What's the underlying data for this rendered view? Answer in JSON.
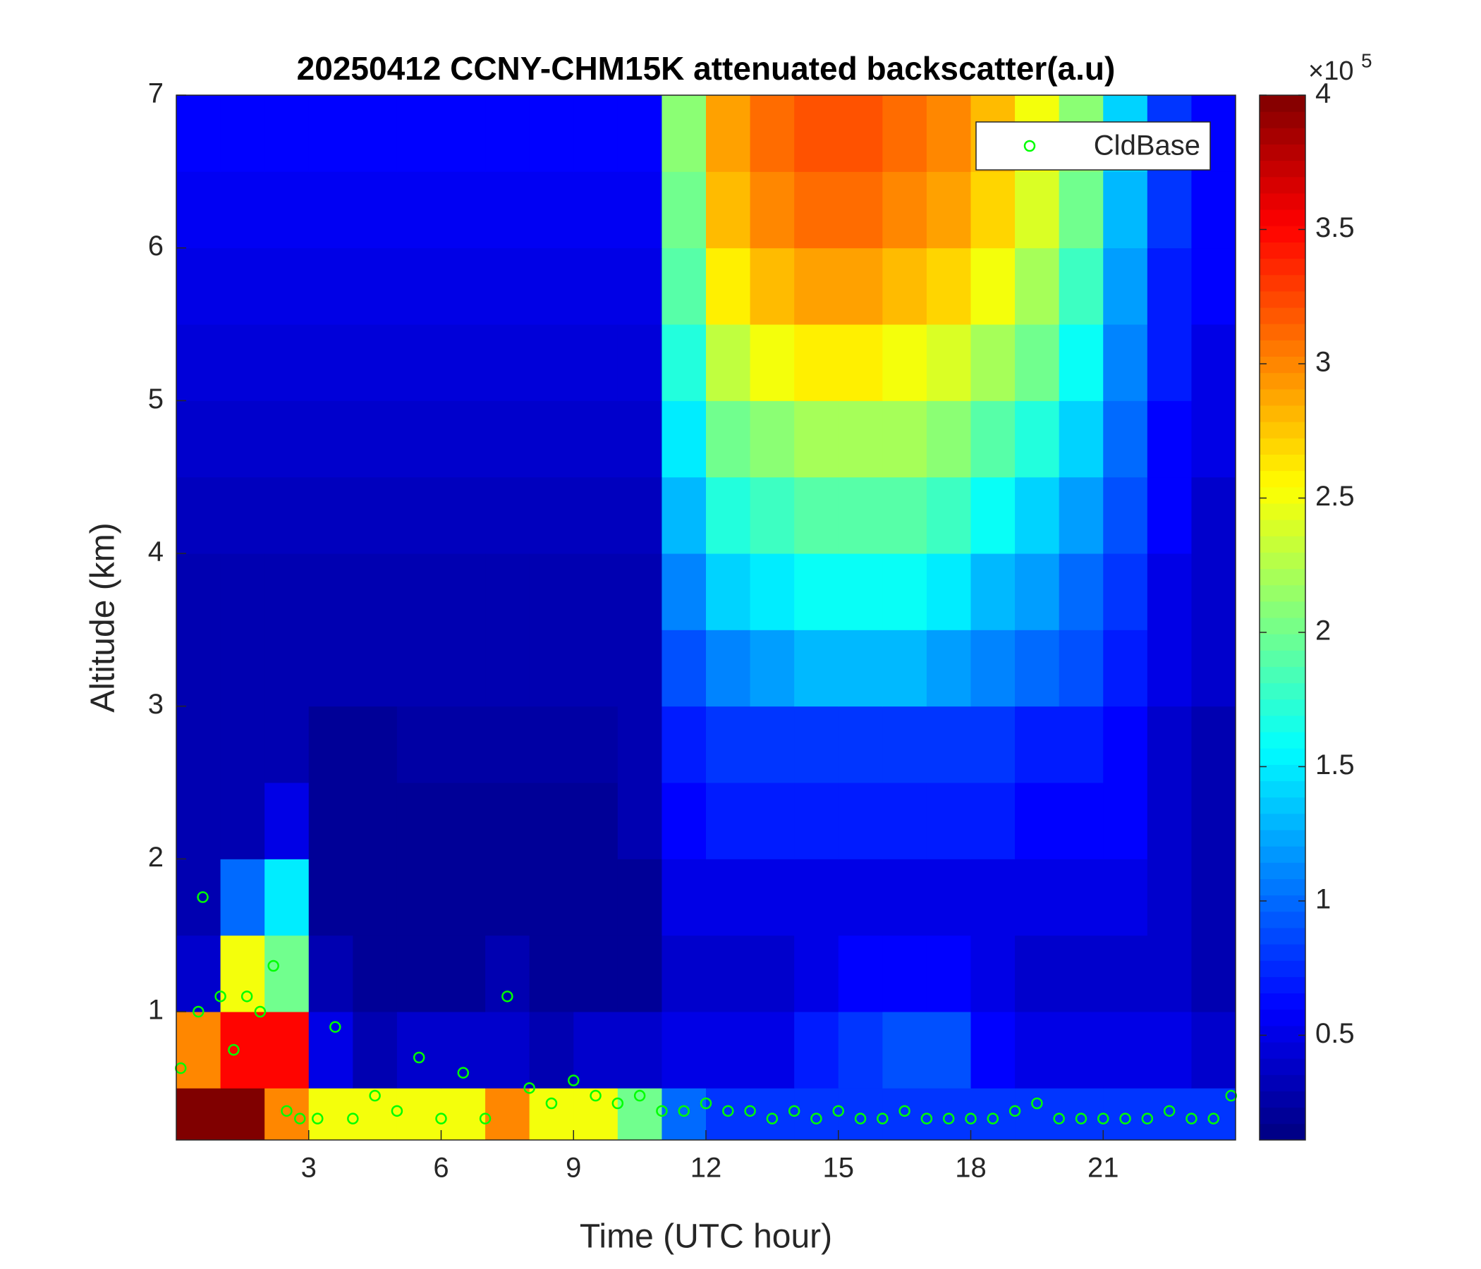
{
  "chart_data": {
    "type": "heatmap",
    "title": "20250412 CCNY-CHM15K attenuated backscatter(a.u)",
    "x_label": "Time (UTC hour)",
    "y_label": "Altitude (km)",
    "xlim": [
      0,
      24
    ],
    "ylim": [
      0.16,
      7
    ],
    "xticks": [
      3,
      6,
      9,
      12,
      15,
      18,
      21
    ],
    "yticks": [
      1,
      2,
      3,
      4,
      5,
      6,
      7
    ],
    "colormap": "jet",
    "clim": [
      0.11,
      4
    ],
    "colorbar_ticks": [
      0.5,
      1,
      1.5,
      2,
      2.5,
      3,
      3.5,
      4
    ],
    "colorbar_multiplier": "×10",
    "colorbar_exponent": "5",
    "x_edges": [
      0,
      1,
      2,
      3,
      4,
      5,
      6,
      7,
      8,
      9,
      10,
      11,
      12,
      13,
      14,
      15,
      16,
      17,
      18,
      19,
      20,
      21,
      22,
      23,
      24
    ],
    "y_edges": [
      0.16,
      0.5,
      1,
      1.5,
      2,
      2.5,
      3,
      3.5,
      4,
      4.5,
      5,
      5.5,
      6,
      6.5,
      7
    ],
    "z": [
      [
        4,
        4,
        3,
        2.5,
        2.5,
        2.5,
        2.5,
        3,
        2.5,
        2.5,
        2,
        1,
        0.8,
        0.8,
        0.8,
        0.8,
        0.8,
        0.8,
        0.8,
        0.8,
        0.8,
        0.8,
        0.8,
        0.8
      ],
      [
        3,
        3.5,
        3.5,
        0.5,
        0.3,
        0.4,
        0.4,
        0.4,
        0.3,
        0.4,
        0.4,
        0.5,
        0.5,
        0.5,
        0.7,
        0.8,
        0.9,
        0.9,
        0.6,
        0.5,
        0.5,
        0.5,
        0.5,
        0.4
      ],
      [
        0.4,
        2.5,
        2,
        0.3,
        0.2,
        0.2,
        0.2,
        0.3,
        0.2,
        0.2,
        0.2,
        0.4,
        0.4,
        0.4,
        0.5,
        0.6,
        0.6,
        0.6,
        0.5,
        0.4,
        0.4,
        0.4,
        0.4,
        0.3
      ],
      [
        0.3,
        1,
        1.5,
        0.2,
        0.2,
        0.2,
        0.2,
        0.2,
        0.2,
        0.2,
        0.2,
        0.5,
        0.5,
        0.5,
        0.5,
        0.5,
        0.5,
        0.5,
        0.5,
        0.5,
        0.5,
        0.5,
        0.4,
        0.3
      ],
      [
        0.3,
        0.3,
        0.5,
        0.2,
        0.2,
        0.2,
        0.2,
        0.2,
        0.2,
        0.2,
        0.3,
        0.6,
        0.7,
        0.7,
        0.7,
        0.7,
        0.7,
        0.7,
        0.7,
        0.6,
        0.6,
        0.6,
        0.4,
        0.3
      ],
      [
        0.3,
        0.3,
        0.3,
        0.2,
        0.2,
        0.25,
        0.25,
        0.25,
        0.25,
        0.25,
        0.3,
        0.7,
        0.8,
        0.8,
        0.8,
        0.8,
        0.8,
        0.8,
        0.8,
        0.7,
        0.7,
        0.6,
        0.4,
        0.3
      ],
      [
        0.3,
        0.3,
        0.3,
        0.3,
        0.3,
        0.3,
        0.3,
        0.3,
        0.3,
        0.3,
        0.3,
        0.9,
        1.1,
        1.2,
        1.3,
        1.3,
        1.3,
        1.2,
        1.1,
        1,
        0.9,
        0.7,
        0.5,
        0.4
      ],
      [
        0.3,
        0.3,
        0.3,
        0.3,
        0.3,
        0.3,
        0.3,
        0.3,
        0.3,
        0.3,
        0.3,
        1.1,
        1.4,
        1.5,
        1.6,
        1.6,
        1.6,
        1.5,
        1.3,
        1.2,
        1,
        0.8,
        0.5,
        0.4
      ],
      [
        0.35,
        0.35,
        0.35,
        0.35,
        0.35,
        0.35,
        0.35,
        0.35,
        0.35,
        0.35,
        0.35,
        1.3,
        1.7,
        1.8,
        1.9,
        1.9,
        1.9,
        1.8,
        1.6,
        1.4,
        1.2,
        0.9,
        0.6,
        0.4
      ],
      [
        0.4,
        0.4,
        0.4,
        0.4,
        0.4,
        0.4,
        0.4,
        0.4,
        0.4,
        0.4,
        0.4,
        1.5,
        2,
        2.1,
        2.2,
        2.2,
        2.2,
        2.1,
        1.9,
        1.7,
        1.4,
        1,
        0.6,
        0.5
      ],
      [
        0.45,
        0.45,
        0.45,
        0.45,
        0.45,
        0.45,
        0.45,
        0.45,
        0.45,
        0.45,
        0.45,
        1.7,
        2.3,
        2.5,
        2.6,
        2.6,
        2.5,
        2.4,
        2.2,
        2,
        1.6,
        1.1,
        0.7,
        0.5
      ],
      [
        0.5,
        0.5,
        0.5,
        0.5,
        0.5,
        0.5,
        0.5,
        0.5,
        0.5,
        0.5,
        0.5,
        1.9,
        2.6,
        2.8,
        2.9,
        2.9,
        2.8,
        2.7,
        2.5,
        2.2,
        1.8,
        1.2,
        0.7,
        0.6
      ],
      [
        0.55,
        0.55,
        0.55,
        0.55,
        0.55,
        0.55,
        0.55,
        0.55,
        0.55,
        0.55,
        0.55,
        2,
        2.8,
        3,
        3.1,
        3.1,
        3,
        2.9,
        2.7,
        2.4,
        2,
        1.3,
        0.8,
        0.6
      ],
      [
        0.6,
        0.6,
        0.6,
        0.6,
        0.6,
        0.6,
        0.6,
        0.6,
        0.6,
        0.6,
        0.6,
        2.1,
        2.9,
        3.1,
        3.2,
        3.2,
        3.1,
        3,
        2.8,
        2.5,
        2.1,
        1.4,
        0.8,
        0.6
      ]
    ],
    "scatter": {
      "name": "CldBase",
      "color": "#00ff00",
      "x": [
        0.1,
        0.5,
        0.6,
        1.0,
        1.3,
        1.6,
        1.9,
        2.2,
        2.5,
        2.8,
        3.2,
        3.6,
        4.0,
        4.5,
        5.0,
        5.5,
        6.0,
        6.5,
        7.0,
        7.5,
        8.0,
        8.5,
        9.0,
        9.5,
        10,
        10.5,
        11,
        11.5,
        12,
        12.5,
        13,
        13.5,
        14,
        14.5,
        15,
        15.5,
        16,
        16.5,
        17,
        17.5,
        18,
        18.5,
        19,
        19.5,
        20,
        20.5,
        21,
        21.5,
        22,
        22.5,
        23,
        23.5,
        23.9
      ],
      "y": [
        0.63,
        1.0,
        1.75,
        1.1,
        0.75,
        1.1,
        1.0,
        1.3,
        0.35,
        0.3,
        0.3,
        0.9,
        0.3,
        0.45,
        0.35,
        0.7,
        0.3,
        0.6,
        0.3,
        1.1,
        0.5,
        0.4,
        0.55,
        0.45,
        0.4,
        0.45,
        0.35,
        0.35,
        0.4,
        0.35,
        0.35,
        0.3,
        0.35,
        0.3,
        0.35,
        0.3,
        0.3,
        0.35,
        0.3,
        0.3,
        0.3,
        0.3,
        0.35,
        0.4,
        0.3,
        0.3,
        0.3,
        0.3,
        0.3,
        0.35,
        0.3,
        0.3,
        0.45
      ]
    },
    "legend": "northeast"
  }
}
